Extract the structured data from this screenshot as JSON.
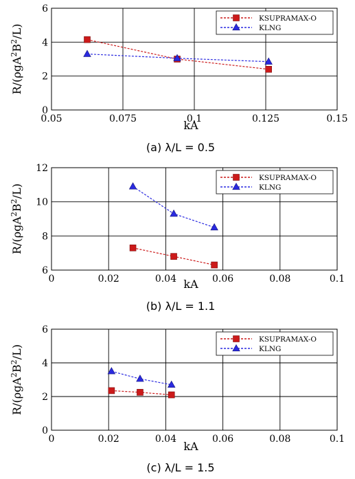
{
  "chart_data": [
    {
      "type": "line",
      "caption": "(a)  λ/L = 0.5",
      "xlabel": "kA",
      "ylabel": "R/(ρgA²B²/L)",
      "xlim": [
        0.05,
        0.15
      ],
      "ylim": [
        0,
        6
      ],
      "xticks": [
        0.05,
        0.075,
        0.1,
        0.125,
        0.15
      ],
      "xtick_labels": [
        "0.05",
        "0.075",
        "0.1",
        "0.125",
        "0.15"
      ],
      "yticks": [
        0,
        2,
        4,
        6
      ],
      "ytick_labels": [
        "0",
        "2",
        "4",
        "6"
      ],
      "grid": true,
      "legend_position": "top-right",
      "series": [
        {
          "name": "KSUPRAMAX-O",
          "marker": "square",
          "color": "#cc1a1a",
          "x": [
            0.0625,
            0.094,
            0.126
          ],
          "y": [
            4.15,
            3.0,
            2.4
          ]
        },
        {
          "name": "KLNG",
          "marker": "triangle",
          "color": "#2a2ae0",
          "x": [
            0.0625,
            0.094,
            0.126
          ],
          "y": [
            3.3,
            3.05,
            2.85
          ]
        }
      ]
    },
    {
      "type": "line",
      "caption": "(b)  λ/L = 1.1",
      "xlabel": "kA",
      "ylabel": "R/(ρgA²B²/L)",
      "xlim": [
        0,
        0.1
      ],
      "ylim": [
        6,
        12
      ],
      "xticks": [
        0,
        0.02,
        0.04,
        0.06,
        0.08,
        0.1
      ],
      "xtick_labels": [
        "0",
        "0.02",
        "0.04",
        "0.06",
        "0.08",
        "0.1"
      ],
      "yticks": [
        6,
        8,
        10,
        12
      ],
      "ytick_labels": [
        "6",
        "8",
        "10",
        "12"
      ],
      "grid": true,
      "legend_position": "top-right",
      "series": [
        {
          "name": "KSUPRAMAX-O",
          "marker": "square",
          "color": "#cc1a1a",
          "x": [
            0.0285,
            0.0428,
            0.057
          ],
          "y": [
            7.3,
            6.8,
            6.3
          ]
        },
        {
          "name": "KLNG",
          "marker": "triangle",
          "color": "#2a2ae0",
          "x": [
            0.0285,
            0.0428,
            0.057
          ],
          "y": [
            10.9,
            9.3,
            8.5
          ]
        }
      ]
    },
    {
      "type": "line",
      "caption": "(c)  λ/L = 1.5",
      "xlabel": "kA",
      "ylabel": "R/(ρgA²B²/L)",
      "xlim": [
        0,
        0.1
      ],
      "ylim": [
        0,
        6
      ],
      "xticks": [
        0,
        0.02,
        0.04,
        0.06,
        0.08,
        0.1
      ],
      "xtick_labels": [
        "0",
        "0.02",
        "0.04",
        "0.06",
        "0.08",
        "0.1"
      ],
      "yticks": [
        0,
        2,
        4,
        6
      ],
      "ytick_labels": [
        "0",
        "2",
        "4",
        "6"
      ],
      "grid": true,
      "legend_position": "top-right",
      "series": [
        {
          "name": "KSUPRAMAX-O",
          "marker": "square",
          "color": "#cc1a1a",
          "x": [
            0.021,
            0.031,
            0.042
          ],
          "y": [
            2.35,
            2.25,
            2.1
          ]
        },
        {
          "name": "KLNG",
          "marker": "triangle",
          "color": "#2a2ae0",
          "x": [
            0.021,
            0.031,
            0.042
          ],
          "y": [
            3.5,
            3.05,
            2.7
          ]
        }
      ]
    }
  ]
}
